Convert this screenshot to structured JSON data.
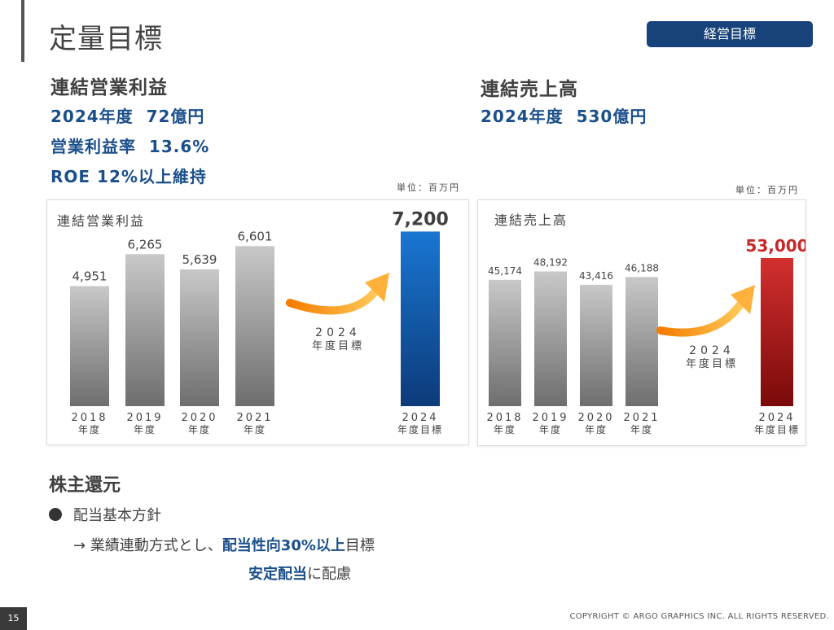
{
  "header": {
    "title": "定量目標",
    "badge": "経営目標"
  },
  "profit_section": {
    "heading": "連結営業利益",
    "kpi_lines": [
      "2024年度  72億円",
      "営業利益率  13.6%",
      "ROE 12%以上維持"
    ]
  },
  "sales_section": {
    "heading": "連結売上高",
    "kpi_lines": [
      "2024年度  530億円"
    ]
  },
  "unit_label": "単位：百万円",
  "chart_data": [
    {
      "type": "bar",
      "title": "連結営業利益",
      "unit": "単位：百万円",
      "categories": [
        "2018",
        "2019",
        "2020",
        "2021",
        "2024"
      ],
      "category_suffix": [
        "年度",
        "年度",
        "年度",
        "年度",
        "年度目標"
      ],
      "values": [
        4951,
        6265,
        5639,
        6601,
        7200
      ],
      "value_labels": [
        "4,951",
        "6,265",
        "5,639",
        "6,601",
        "7,200"
      ],
      "arrow_label": [
        "2024",
        "年度目標"
      ],
      "target_color": "#1565c0",
      "history_color": "#9e9e9e"
    },
    {
      "type": "bar",
      "title": "連結売上高",
      "unit": "単位：百万円",
      "categories": [
        "2018",
        "2019",
        "2020",
        "2021",
        "2024"
      ],
      "category_suffix": [
        "年度",
        "年度",
        "年度",
        "年度",
        "年度目標"
      ],
      "values": [
        45174,
        48192,
        43416,
        46188,
        53000
      ],
      "value_labels": [
        "45,174",
        "48,192",
        "43,416",
        "46,188",
        "53,000"
      ],
      "arrow_label": [
        "2024",
        "年度目標"
      ],
      "target_color": "#c62828",
      "history_color": "#9e9e9e"
    }
  ],
  "shareholder": {
    "heading": "株主還元",
    "bullet": "配当基本方針",
    "line1_pre": "→ 業績連動方式とし、",
    "line1_hl": "配当性向30%以上",
    "line1_post": "目標",
    "line2_hl": "安定配当",
    "line2_post": "に配慮"
  },
  "footer": {
    "page": "15",
    "copyright": "COPYRIGHT © ARGO GRAPHICS INC. ALL RIGHTS RESERVED."
  }
}
